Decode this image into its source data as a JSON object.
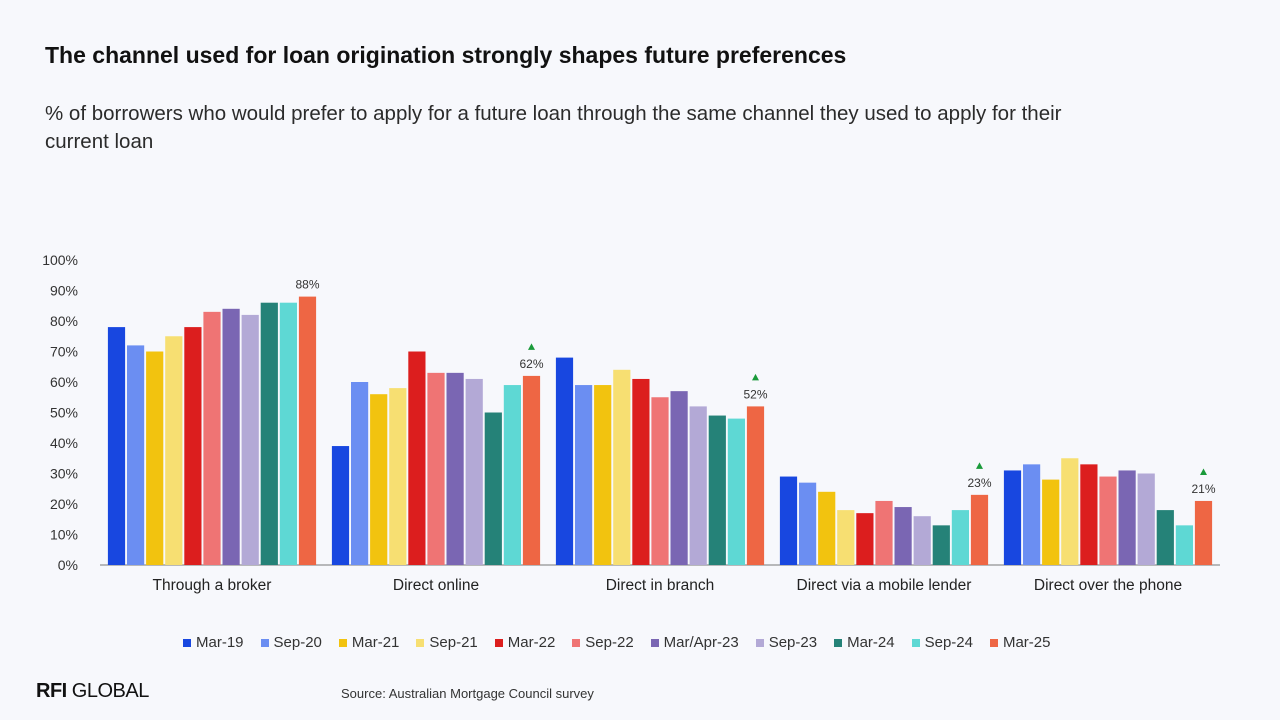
{
  "title": "The channel used for loan origination strongly shapes future preferences",
  "subtitle": "% of borrowers who would prefer to apply for a future loan through the same channel they used to apply for their current loan",
  "source": "Source: Australian Mortgage Council survey",
  "logo": {
    "bold": "RFI",
    "rest": "GLOBAL"
  },
  "chart_data": {
    "type": "bar",
    "ylim": [
      0,
      100
    ],
    "yticks": [
      "0%",
      "10%",
      "20%",
      "30%",
      "40%",
      "50%",
      "60%",
      "70%",
      "80%",
      "90%",
      "100%"
    ],
    "grid": false,
    "legend_position": "bottom",
    "categories": [
      "Through a broker",
      "Direct online",
      "Direct in branch",
      "Direct via a mobile lender",
      "Direct over the phone"
    ],
    "series": [
      {
        "name": "Mar-19",
        "color": "#1847e0",
        "values": [
          78,
          39,
          68,
          29,
          31
        ]
      },
      {
        "name": "Sep-20",
        "color": "#6b8ef2",
        "values": [
          72,
          60,
          59,
          27,
          33
        ]
      },
      {
        "name": "Mar-21",
        "color": "#f2c30f",
        "values": [
          70,
          56,
          59,
          24,
          28
        ]
      },
      {
        "name": "Sep-21",
        "color": "#f7df72",
        "values": [
          75,
          58,
          64,
          18,
          35
        ]
      },
      {
        "name": "Mar-22",
        "color": "#dc1e1e",
        "values": [
          78,
          70,
          61,
          17,
          33
        ]
      },
      {
        "name": "Sep-22",
        "color": "#ef7474",
        "values": [
          83,
          63,
          55,
          21,
          29
        ]
      },
      {
        "name": "Mar/Apr-23",
        "color": "#7a66b3",
        "values": [
          84,
          63,
          57,
          19,
          31
        ]
      },
      {
        "name": "Sep-23",
        "color": "#b3a9d6",
        "values": [
          82,
          61,
          52,
          16,
          30
        ]
      },
      {
        "name": "Mar-24",
        "color": "#258278",
        "values": [
          86,
          50,
          49,
          13,
          18
        ]
      },
      {
        "name": "Sep-24",
        "color": "#5ed8d4",
        "values": [
          86,
          59,
          48,
          18,
          13
        ]
      },
      {
        "name": "Mar-25",
        "color": "#ee6644",
        "values": [
          88,
          62,
          52,
          23,
          21
        ]
      }
    ],
    "annotations": [
      {
        "category": "Through a broker",
        "label": "88%",
        "up_arrow": false
      },
      {
        "category": "Direct online",
        "label": "62%",
        "up_arrow": true
      },
      {
        "category": "Direct in branch",
        "label": "52%",
        "up_arrow": true
      },
      {
        "category": "Direct via a mobile lender",
        "label": "23%",
        "up_arrow": true
      },
      {
        "category": "Direct over the phone",
        "label": "21%",
        "up_arrow": true
      }
    ],
    "arrow_color": "#1a9a3a"
  }
}
